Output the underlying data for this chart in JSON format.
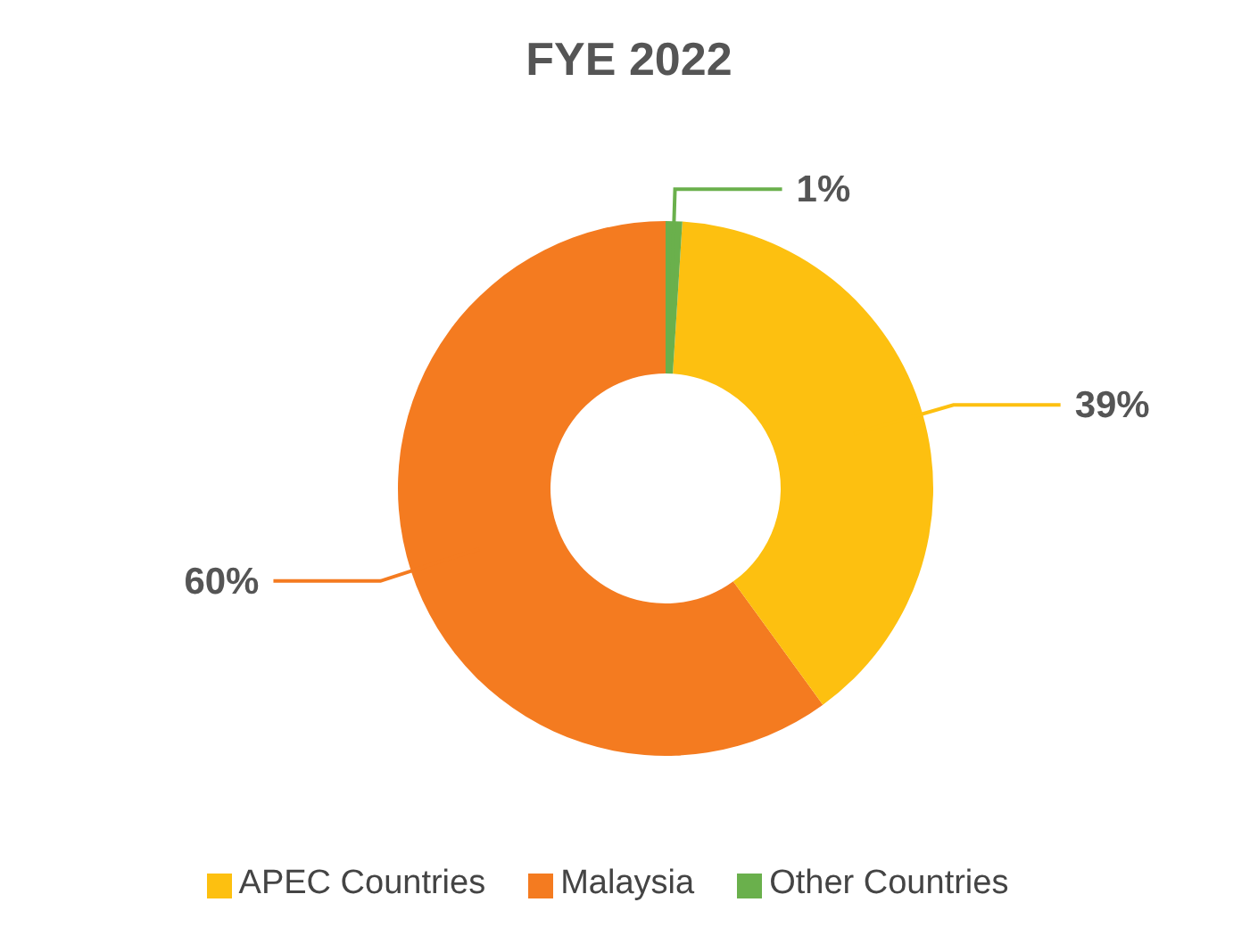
{
  "chart_data": {
    "type": "donut",
    "title": "FYE 2022",
    "categories": [
      "Malaysia",
      "APEC Countries",
      "Other Countries"
    ],
    "values": [
      60,
      39,
      1
    ],
    "value_labels": [
      "60%",
      "39%",
      "1%"
    ],
    "colors": [
      "#f47b20",
      "#fdc010",
      "#6ab04c"
    ],
    "legend": "bottom"
  }
}
